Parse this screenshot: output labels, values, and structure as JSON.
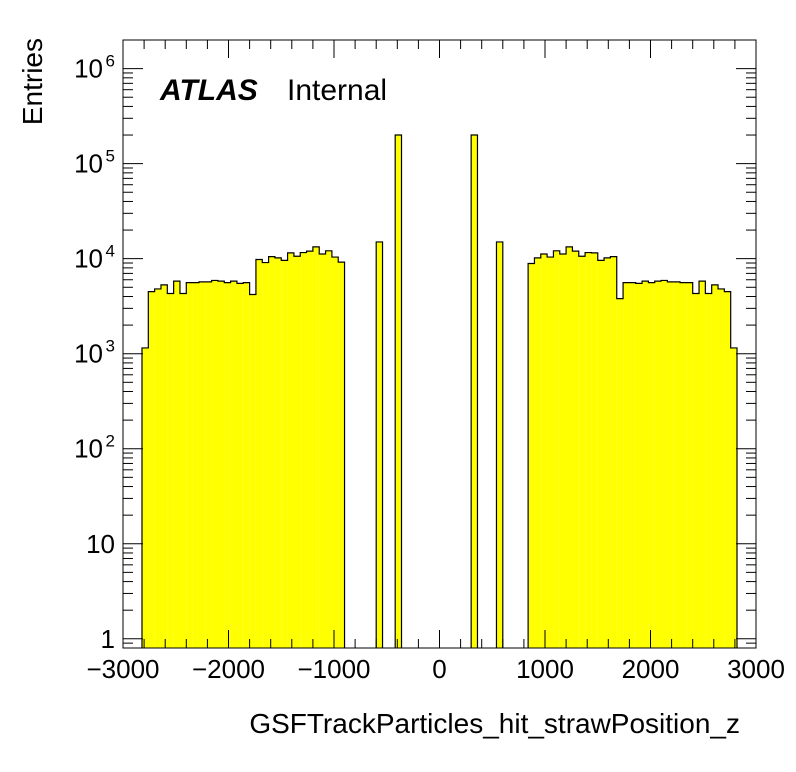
{
  "chart_data": {
    "type": "bar",
    "subtype": "histogram",
    "xlabel": "GSFTrackParticles_hit_strawPosition_z",
    "ylabel": "Entries",
    "label": {
      "experiment": "ATLAS",
      "status": "Internal"
    },
    "xlim": [
      -3000,
      3000
    ],
    "ylim": [
      0.8,
      2000000
    ],
    "yscale": "log",
    "fill_color": "#ffff00",
    "line_color": "#000000",
    "x_ticks": [
      "−3000",
      "−2000",
      "−1000",
      "0",
      "1000",
      "2000",
      "3000"
    ],
    "y_ticks": [
      {
        "base": "1",
        "exp": ""
      },
      {
        "base": "10",
        "exp": ""
      },
      {
        "base": "10",
        "exp": "2"
      },
      {
        "base": "10",
        "exp": "3"
      },
      {
        "base": "10",
        "exp": "4"
      },
      {
        "base": "10",
        "exp": "5"
      },
      {
        "base": "10",
        "exp": "6"
      }
    ],
    "bin_width": 60,
    "bins": [
      [
        -2820,
        1150
      ],
      [
        -2760,
        4500
      ],
      [
        -2700,
        4800
      ],
      [
        -2640,
        5300
      ],
      [
        -2580,
        4300
      ],
      [
        -2520,
        5800
      ],
      [
        -2460,
        4300
      ],
      [
        -2400,
        5600
      ],
      [
        -2340,
        5600
      ],
      [
        -2280,
        5700
      ],
      [
        -2220,
        5700
      ],
      [
        -2160,
        5900
      ],
      [
        -2100,
        5800
      ],
      [
        -2040,
        5600
      ],
      [
        -1980,
        5800
      ],
      [
        -1920,
        5500
      ],
      [
        -1860,
        5600
      ],
      [
        -1800,
        4200
      ],
      [
        -1740,
        9800
      ],
      [
        -1680,
        9100
      ],
      [
        -1620,
        10500
      ],
      [
        -1560,
        10200
      ],
      [
        -1500,
        9600
      ],
      [
        -1440,
        11500
      ],
      [
        -1380,
        10600
      ],
      [
        -1320,
        11600
      ],
      [
        -1260,
        12000
      ],
      [
        -1200,
        13300
      ],
      [
        -1140,
        11200
      ],
      [
        -1080,
        12100
      ],
      [
        -1020,
        10400
      ],
      [
        -960,
        9200
      ],
      [
        -600,
        15000
      ],
      [
        -420,
        200000
      ],
      [
        300,
        200000
      ],
      [
        540,
        15000
      ],
      [
        840,
        8900
      ],
      [
        900,
        10200
      ],
      [
        960,
        11200
      ],
      [
        1020,
        10400
      ],
      [
        1080,
        12100
      ],
      [
        1140,
        11200
      ],
      [
        1200,
        13300
      ],
      [
        1260,
        12000
      ],
      [
        1320,
        10600
      ],
      [
        1380,
        11600
      ],
      [
        1440,
        11500
      ],
      [
        1500,
        9600
      ],
      [
        1560,
        10200
      ],
      [
        1620,
        10500
      ],
      [
        1680,
        3800
      ],
      [
        1740,
        5600
      ],
      [
        1800,
        5600
      ],
      [
        1860,
        5500
      ],
      [
        1920,
        5800
      ],
      [
        1980,
        5600
      ],
      [
        2040,
        5800
      ],
      [
        2100,
        5900
      ],
      [
        2160,
        5700
      ],
      [
        2220,
        5700
      ],
      [
        2280,
        5600
      ],
      [
        2340,
        5600
      ],
      [
        2400,
        4300
      ],
      [
        2460,
        5800
      ],
      [
        2520,
        4300
      ],
      [
        2580,
        5300
      ],
      [
        2640,
        4800
      ],
      [
        2700,
        4500
      ],
      [
        2760,
        1150
      ]
    ]
  }
}
